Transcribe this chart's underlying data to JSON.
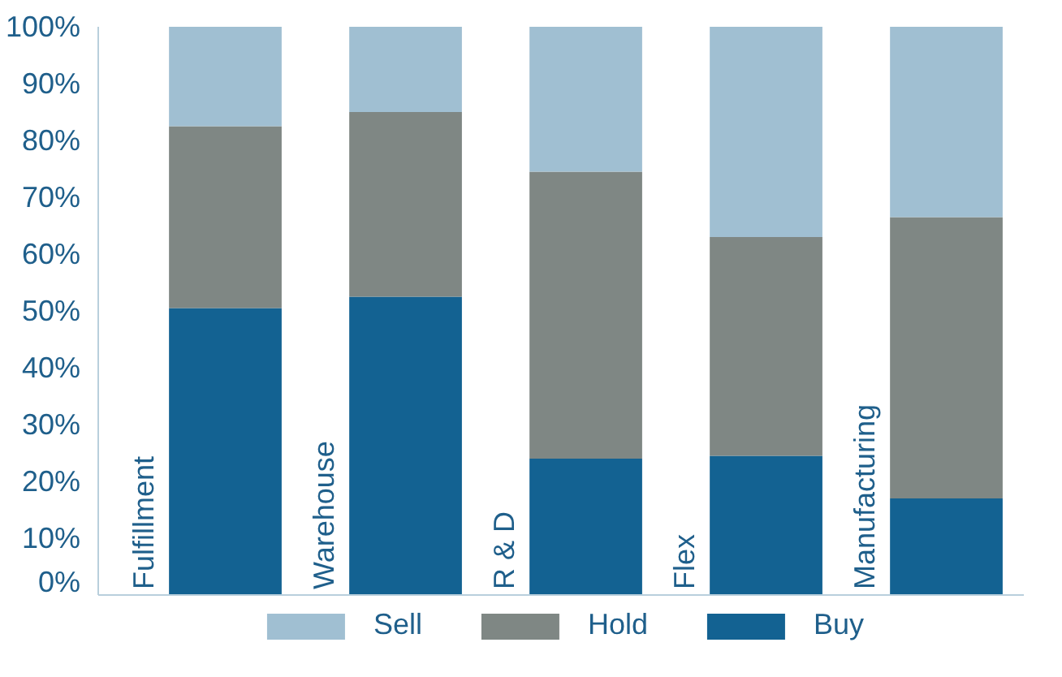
{
  "chart_data": {
    "type": "bar",
    "stacked": true,
    "categories": [
      "Fulfillment",
      "Warehouse",
      "R & D",
      "Flex",
      "Manufacturing"
    ],
    "series": [
      {
        "name": "Buy",
        "color": "#136292",
        "values": [
          50.5,
          52.5,
          24,
          24.5,
          17
        ]
      },
      {
        "name": "Hold",
        "color": "#7f8784",
        "values": [
          32,
          32.5,
          50.5,
          38.5,
          49.5
        ]
      },
      {
        "name": "Sell",
        "color": "#a0bfd2",
        "values": [
          17.5,
          15,
          25.5,
          37,
          33.5
        ]
      }
    ],
    "ylim": [
      0,
      100
    ],
    "yticks": [
      {
        "value": 0,
        "label": "0%"
      },
      {
        "value": 10,
        "label": "10%"
      },
      {
        "value": 20,
        "label": "20%"
      },
      {
        "value": 30,
        "label": "30%"
      },
      {
        "value": 40,
        "label": "40%"
      },
      {
        "value": 50,
        "label": "50%"
      },
      {
        "value": 60,
        "label": "60%"
      },
      {
        "value": 70,
        "label": "70%"
      },
      {
        "value": 80,
        "label": "80%"
      },
      {
        "value": 90,
        "label": "90%"
      },
      {
        "value": 100,
        "label": "100%"
      }
    ],
    "legend": "bottom",
    "grid": false
  }
}
